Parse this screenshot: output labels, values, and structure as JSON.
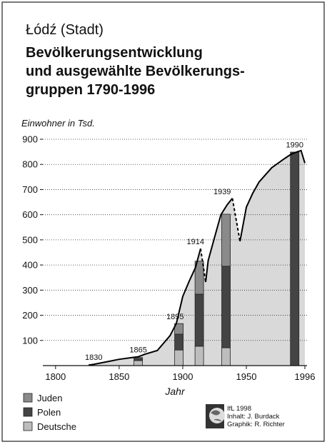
{
  "chart_data": {
    "type": "bar",
    "place": "Łódź (Stadt)",
    "title_lines": [
      "Bevölkerungsentwicklung",
      "und ausgewählte Bevölkerungs-",
      "gruppen 1790-1996"
    ],
    "y_label": "Einwohner in Tsd.",
    "x_label": "Jahr",
    "xlim": [
      1790,
      1996
    ],
    "xticks": [
      1800,
      1850,
      1900,
      1950,
      1996
    ],
    "ylim": [
      0,
      900
    ],
    "yticks": [
      100,
      200,
      300,
      400,
      500,
      600,
      700,
      800,
      900
    ],
    "grid": true,
    "bar_x": [
      1865,
      1897,
      1913,
      1934,
      1988
    ],
    "series": [
      {
        "name": "Deutsche",
        "color": "#bdbdbd",
        "values": [
          20,
          62,
          77,
          71,
          0
        ]
      },
      {
        "name": "Polen",
        "color": "#444444",
        "values": [
          8,
          63,
          207,
          324,
          849
        ]
      },
      {
        "name": "Juden",
        "color": "#8a8a8a",
        "values": [
          4,
          42,
          131,
          207,
          0
        ]
      }
    ],
    "line": {
      "color": "#000000",
      "area_color": "#d9d9d9",
      "x": [
        1826,
        1830,
        1840,
        1850,
        1860,
        1865,
        1870,
        1880,
        1890,
        1895,
        1900,
        1905,
        1910,
        1914,
        1916,
        1918,
        1920,
        1925,
        1930,
        1935,
        1939,
        1942,
        1945,
        1950,
        1955,
        1960,
        1970,
        1975,
        1980,
        1985,
        1990,
        1993,
        1996
      ],
      "values": [
        2,
        5,
        15,
        25,
        32,
        35,
        45,
        60,
        119,
        168,
        275,
        335,
        390,
        465,
        null,
        332,
        418,
        510,
        600,
        640,
        665,
        null,
        494,
        630,
        685,
        730,
        787,
        805,
        823,
        840,
        850,
        855,
        805
      ],
      "dashed": [
        null,
        null,
        null,
        null,
        null,
        null,
        null,
        null,
        null,
        null,
        null,
        null,
        null,
        465,
        400,
        332,
        null,
        null,
        null,
        null,
        665,
        580,
        494,
        null,
        null,
        null,
        null,
        null,
        null,
        null,
        null,
        null,
        null
      ]
    },
    "annotations": [
      {
        "text": "1830",
        "x": 1830,
        "y": 5
      },
      {
        "text": "1865",
        "x": 1865,
        "y": 35
      },
      {
        "text": "1895",
        "x": 1894,
        "y": 168
      },
      {
        "text": "1914",
        "x": 1910,
        "y": 465
      },
      {
        "text": "1939",
        "x": 1931,
        "y": 665
      },
      {
        "text": "1990",
        "x": 1988,
        "y": 850
      }
    ],
    "credits": [
      "IfL 1998",
      "Inhalt: J. Burdack",
      "Graphik: R. Richter"
    ]
  }
}
